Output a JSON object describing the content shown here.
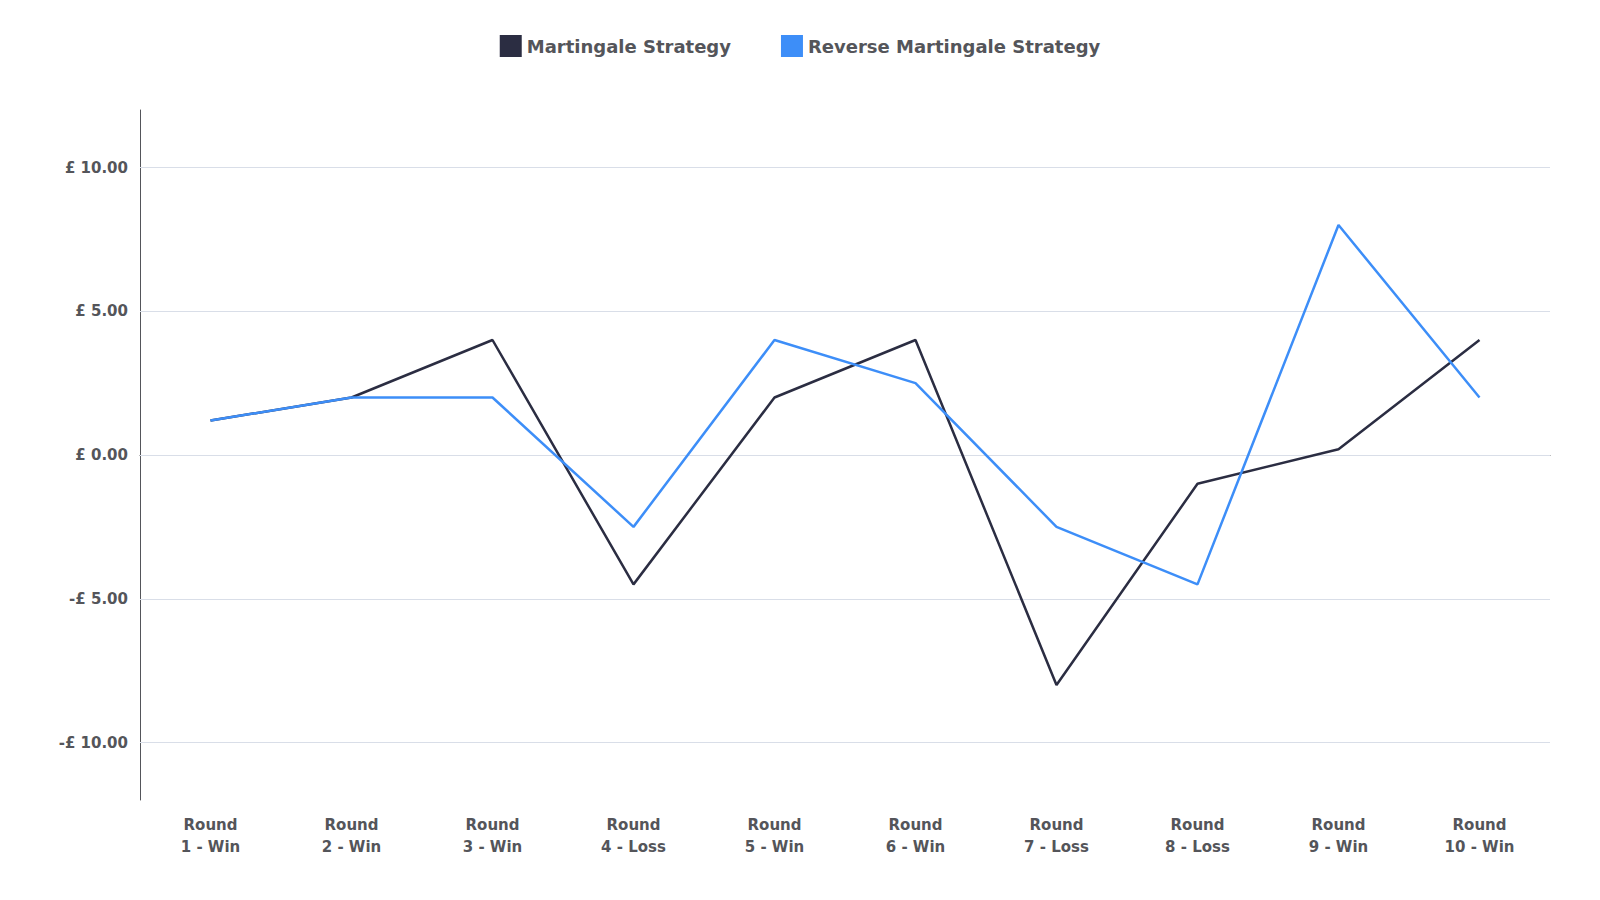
{
  "chart_data": {
    "type": "line",
    "categories": [
      "Round\n1 - Win",
      "Round\n2 - Win",
      "Round\n3 - Win",
      "Round\n4 - Loss",
      "Round\n5 - Win",
      "Round\n6 - Win",
      "Round\n7 - Loss",
      "Round\n8 - Loss",
      "Round\n9 - Win",
      "Round\n10 - Win"
    ],
    "series": [
      {
        "name": "Martingale Strategy",
        "color": "#2b2d42",
        "values": [
          1.2,
          2.0,
          4.0,
          -4.5,
          2.0,
          4.0,
          -8.0,
          -1.0,
          0.2,
          4.0
        ]
      },
      {
        "name": "Reverse Martingale Strategy",
        "color": "#3d8ef8",
        "values": [
          1.2,
          2.0,
          2.0,
          -2.5,
          4.0,
          2.5,
          -2.5,
          -4.5,
          8.0,
          2.0
        ]
      }
    ],
    "ylim": [
      -12,
      12
    ],
    "yticks": [
      {
        "value": -10,
        "label": "-£ 10.00"
      },
      {
        "value": -5,
        "label": "-£ 5.00"
      },
      {
        "value": 0,
        "label": "£ 0.00"
      },
      {
        "value": 5,
        "label": "£ 5.00"
      },
      {
        "value": 10,
        "label": "£ 10.00"
      }
    ],
    "grid": true,
    "legend": "top"
  }
}
